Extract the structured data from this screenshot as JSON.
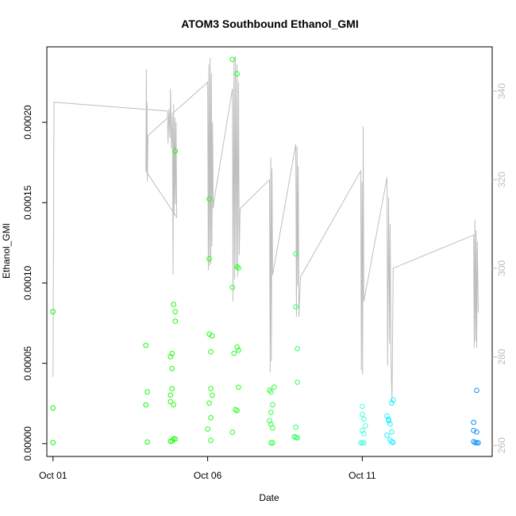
{
  "chart_data": {
    "type": "scatter",
    "title": "ATOM3 Southbound Ethanol_GMI",
    "xlabel": "Date",
    "ylabel": "Ethanol_GMI",
    "xlim": [
      -0.2,
      14.2
    ],
    "ylim": [
      -8e-06,
      0.000247
    ],
    "y2lim": [
      257.5,
      350.0
    ],
    "grid": false,
    "legend": "none",
    "x_ticks": [
      {
        "value": 0,
        "label": "Oct 01"
      },
      {
        "value": 5,
        "label": "Oct 06"
      },
      {
        "value": 10,
        "label": "Oct 11"
      }
    ],
    "y_ticks": [
      {
        "value": 0.0,
        "label": "0.00000"
      },
      {
        "value": 5e-05,
        "label": "0.00005"
      },
      {
        "value": 0.0001,
        "label": "0.00010"
      },
      {
        "value": 0.00015,
        "label": "0.00015"
      },
      {
        "value": 0.0002,
        "label": "0.00020"
      }
    ],
    "y2_ticks": [
      {
        "value": 260,
        "label": "260"
      },
      {
        "value": 280,
        "label": "280"
      },
      {
        "value": 300,
        "label": "300"
      },
      {
        "value": 320,
        "label": "320"
      },
      {
        "value": 340,
        "label": "340"
      }
    ],
    "colors": {
      "secondary_line": "#bebebe",
      "points_early": "#00ff00",
      "points_mid": "#00ffff",
      "points_late": "#0096ff"
    },
    "series": [
      {
        "type": "scatter",
        "points": [
          [
            0.0,
            8.22e-05,
            "#00ff00"
          ],
          [
            0.0,
            2.22e-05,
            "#00ff00"
          ],
          [
            0.0,
            6e-07,
            "#00ff00"
          ],
          [
            3.0,
            6.12e-05,
            "#10ff00"
          ],
          [
            3.05,
            3.22e-05,
            "#10ff00"
          ],
          [
            3.0,
            2.41e-05,
            "#10ff00"
          ],
          [
            3.05,
            1e-06,
            "#10ff00"
          ],
          [
            3.8,
            5.41e-05,
            "#18ff00"
          ],
          [
            3.85,
            5.61e-05,
            "#18ff00"
          ],
          [
            3.85,
            4.67e-05,
            "#18ff00"
          ],
          [
            3.8,
            3.02e-05,
            "#18ff00"
          ],
          [
            3.85,
            3.42e-05,
            "#18ff00"
          ],
          [
            3.8,
            2.61e-05,
            "#18ff00"
          ],
          [
            3.9,
            2.42e-05,
            "#18ff00"
          ],
          [
            3.8,
            1.4e-06,
            "#18ff00"
          ],
          [
            3.85,
            1.8e-06,
            "#18ff00"
          ],
          [
            3.9,
            3e-06,
            "#18ff00"
          ],
          [
            3.95,
            2.8e-06,
            "#18ff00"
          ],
          [
            3.95,
            0.0001821,
            "#18ff00"
          ],
          [
            3.9,
            8.66e-05,
            "#18ff00"
          ],
          [
            3.95,
            8.21e-05,
            "#18ff00"
          ],
          [
            3.95,
            7.62e-05,
            "#18ff00"
          ],
          [
            5.05,
            0.0001523,
            "#20ff10"
          ],
          [
            5.05,
            0.0001151,
            "#20ff10"
          ],
          [
            5.05,
            6.82e-05,
            "#20ff10"
          ],
          [
            5.15,
            6.71e-05,
            "#20ff10"
          ],
          [
            5.1,
            5.72e-05,
            "#20ff10"
          ],
          [
            5.1,
            3.43e-05,
            "#20ff10"
          ],
          [
            5.15,
            3.01e-05,
            "#20ff10"
          ],
          [
            5.05,
            2.52e-05,
            "#20ff10"
          ],
          [
            5.1,
            1.61e-05,
            "#20ff10"
          ],
          [
            5.0,
            9.1e-06,
            "#20ff10"
          ],
          [
            5.1,
            2e-06,
            "#20ff10"
          ],
          [
            5.8,
            0.0002392,
            "#20ff20"
          ],
          [
            5.95,
            0.0002302,
            "#20ff20"
          ],
          [
            5.95,
            0.0001101,
            "#20ff20"
          ],
          [
            6.0,
            0.0001092,
            "#20ff20"
          ],
          [
            5.8,
            9.72e-05,
            "#20ff20"
          ],
          [
            5.95,
            6.01e-05,
            "#20ff20"
          ],
          [
            6.0,
            5.81e-05,
            "#20ff20"
          ],
          [
            5.85,
            5.62e-05,
            "#20ff20"
          ],
          [
            6.0,
            3.51e-05,
            "#20ff20"
          ],
          [
            5.9,
            2.12e-05,
            "#20ff20"
          ],
          [
            5.95,
            2.05e-05,
            "#20ff20"
          ],
          [
            5.8,
            7.1e-06,
            "#20ff20"
          ],
          [
            7.0,
            3.32e-05,
            "#30ff40"
          ],
          [
            7.05,
            3.22e-05,
            "#30ff40"
          ],
          [
            7.15,
            3.52e-05,
            "#30ff40"
          ],
          [
            7.1,
            2.42e-05,
            "#30ff40"
          ],
          [
            7.05,
            1.95e-05,
            "#30ff40"
          ],
          [
            7.0,
            1.42e-05,
            "#30ff40"
          ],
          [
            7.05,
            1.21e-05,
            "#30ff40"
          ],
          [
            7.1,
            9.8e-06,
            "#30ff40"
          ],
          [
            7.05,
            5e-07,
            "#30ff40"
          ],
          [
            7.1,
            5e-07,
            "#30ff40"
          ],
          [
            7.85,
            0.0001181,
            "#30ff60"
          ],
          [
            7.85,
            8.52e-05,
            "#30ff60"
          ],
          [
            7.9,
            5.91e-05,
            "#30ff60"
          ],
          [
            7.9,
            3.82e-05,
            "#30ff60"
          ],
          [
            7.85,
            1.02e-05,
            "#30ff60"
          ],
          [
            7.8,
            4.3e-06,
            "#30ff60"
          ],
          [
            7.85,
            3.8e-06,
            "#30ff60"
          ],
          [
            7.9,
            3.6e-06,
            "#30ff60"
          ],
          [
            10.0,
            2.32e-05,
            "#40ffe0"
          ],
          [
            10.0,
            1.82e-05,
            "#40ffe0"
          ],
          [
            10.05,
            1.52e-05,
            "#40ffe0"
          ],
          [
            10.1,
            1.11e-05,
            "#40ffe0"
          ],
          [
            10.0,
            8.1e-06,
            "#40ffe0"
          ],
          [
            10.05,
            6.2e-06,
            "#40ffe0"
          ],
          [
            9.95,
            5e-07,
            "#40ffe0"
          ],
          [
            10.0,
            5e-07,
            "#40ffe0"
          ],
          [
            10.05,
            5e-07,
            "#40ffe0"
          ],
          [
            10.8,
            1.72e-05,
            "#20f0ff"
          ],
          [
            10.85,
            1.52e-05,
            "#20f0ff"
          ],
          [
            10.85,
            1.42e-05,
            "#20f0ff"
          ],
          [
            10.9,
            1.22e-05,
            "#20f0ff"
          ],
          [
            10.95,
            7.2e-06,
            "#20f0ff"
          ],
          [
            10.8,
            5.2e-06,
            "#20f0ff"
          ],
          [
            10.9,
            2.2e-06,
            "#20f0ff"
          ],
          [
            10.95,
            1.2e-06,
            "#20f0ff"
          ],
          [
            11.0,
            7e-07,
            "#20f0ff"
          ],
          [
            10.95,
            2.52e-05,
            "#20f0ff"
          ],
          [
            11.0,
            2.72e-05,
            "#20f0ff"
          ],
          [
            13.7,
            3.31e-05,
            "#1090ff"
          ],
          [
            13.6,
            1.32e-05,
            "#1090ff"
          ],
          [
            13.6,
            8.2e-06,
            "#1090ff"
          ],
          [
            13.7,
            7.2e-06,
            "#1090ff"
          ],
          [
            13.6,
            1.2e-06,
            "#1090ff"
          ],
          [
            13.65,
            7e-07,
            "#1090ff"
          ],
          [
            13.7,
            5e-07,
            "#1090ff"
          ],
          [
            13.75,
            5e-07,
            "#1090ff"
          ]
        ]
      },
      {
        "type": "line",
        "axis": "right",
        "color": "#bebebe",
        "points": [
          [
            0.0,
            275.5
          ],
          [
            0.03,
            337.5
          ],
          [
            3.7,
            335.5
          ],
          [
            3.72,
            328.2
          ],
          [
            3.75,
            336.0
          ],
          [
            3.78,
            329.5
          ],
          [
            3.8,
            340.5
          ],
          [
            3.83,
            327.0
          ],
          [
            3.86,
            334.5
          ],
          [
            3.88,
            298.5
          ],
          [
            3.9,
            337.0
          ],
          [
            3.92,
            312.0
          ],
          [
            3.94,
            334.0
          ],
          [
            3.96,
            314.5
          ],
          [
            3.98,
            333.0
          ],
          [
            4.0,
            311.5
          ],
          [
            3.0,
            322.0
          ],
          [
            3.02,
            345.0
          ],
          [
            3.03,
            322.0
          ],
          [
            3.04,
            337.5
          ],
          [
            3.05,
            319.5
          ],
          [
            3.07,
            330.0
          ],
          [
            5.0,
            342.0
          ],
          [
            5.02,
            299.5
          ],
          [
            5.04,
            346.0
          ],
          [
            5.06,
            300.5
          ],
          [
            5.08,
            347.5
          ],
          [
            5.1,
            301.0
          ],
          [
            5.12,
            344.0
          ],
          [
            5.14,
            305.0
          ],
          [
            5.16,
            333.0
          ],
          [
            5.18,
            313.5
          ],
          [
            5.2,
            315.0
          ],
          [
            5.8,
            340.5
          ],
          [
            5.82,
            292.5
          ],
          [
            5.85,
            347.5
          ],
          [
            5.87,
            297.5
          ],
          [
            5.9,
            348.0
          ],
          [
            5.92,
            300.0
          ],
          [
            5.95,
            346.0
          ],
          [
            5.97,
            298.0
          ],
          [
            6.0,
            342.0
          ],
          [
            6.02,
            303.0
          ],
          [
            6.05,
            313.5
          ],
          [
            7.0,
            320.0
          ],
          [
            7.02,
            276.5
          ],
          [
            7.04,
            325.0
          ],
          [
            7.06,
            279.0
          ],
          [
            7.08,
            322.5
          ],
          [
            7.1,
            298.5
          ],
          [
            7.85,
            328.0
          ],
          [
            7.87,
            289.0
          ],
          [
            7.89,
            327.5
          ],
          [
            7.91,
            296.0
          ],
          [
            7.93,
            323.0
          ],
          [
            7.95,
            289.0
          ],
          [
            8.0,
            298.0
          ],
          [
            9.95,
            322.0
          ],
          [
            9.97,
            277.0
          ],
          [
            9.99,
            319.5
          ],
          [
            10.01,
            276.0
          ],
          [
            10.03,
            332.0
          ],
          [
            10.05,
            292.5
          ],
          [
            10.8,
            320.5
          ],
          [
            10.82,
            278.0
          ],
          [
            10.85,
            316.0
          ],
          [
            10.88,
            283.0
          ],
          [
            10.9,
            310.0
          ],
          [
            10.93,
            280.0
          ],
          [
            10.96,
            269.5
          ],
          [
            11.0,
            300.0
          ],
          [
            13.6,
            307.5
          ],
          [
            13.62,
            282.0
          ],
          [
            13.64,
            311.0
          ],
          [
            13.66,
            283.5
          ],
          [
            13.68,
            308.5
          ],
          [
            13.7,
            282.0
          ],
          [
            13.72,
            306.0
          ],
          [
            13.75,
            290.0
          ]
        ]
      }
    ]
  }
}
